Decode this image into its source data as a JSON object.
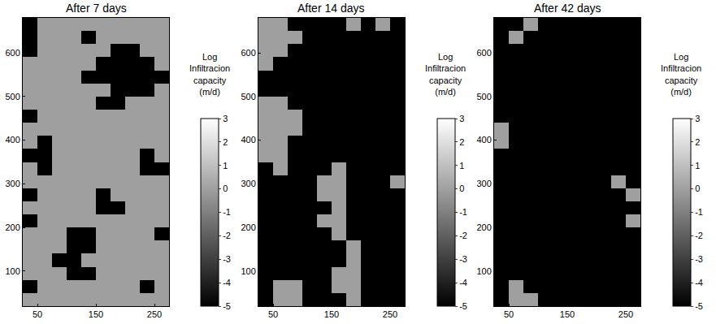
{
  "chart_data": [
    {
      "type": "heatmap",
      "title": "After 7 days",
      "x": [
        37.5,
        62.5,
        87.5,
        112.5,
        137.5,
        162.5,
        187.5,
        212.5,
        237.5,
        262.5
      ],
      "y": [
        665,
        635,
        605,
        575,
        545,
        515,
        485,
        455,
        425,
        395,
        365,
        335,
        305,
        275,
        245,
        215,
        185,
        155,
        125,
        95,
        65,
        35
      ],
      "z": [
        [
          -5,
          0,
          0,
          0,
          0,
          0,
          0,
          0,
          0,
          0
        ],
        [
          -5,
          0,
          0,
          0,
          -5,
          0,
          0,
          0,
          0,
          0
        ],
        [
          -5,
          0,
          0,
          0,
          0,
          0,
          -5,
          -5,
          0,
          0
        ],
        [
          0,
          0,
          0,
          0,
          0,
          -5,
          -5,
          -5,
          -5,
          0
        ],
        [
          0,
          0,
          0,
          0,
          -5,
          -5,
          -5,
          -5,
          -5,
          -5
        ],
        [
          0,
          0,
          0,
          0,
          0,
          0,
          -5,
          -5,
          -5,
          0
        ],
        [
          0,
          0,
          0,
          0,
          0,
          -5,
          -5,
          0,
          0,
          0
        ],
        [
          -5,
          0,
          0,
          0,
          0,
          0,
          0,
          0,
          0,
          0
        ],
        [
          0,
          0,
          0,
          0,
          0,
          0,
          0,
          0,
          0,
          0
        ],
        [
          0,
          -5,
          0,
          0,
          0,
          0,
          0,
          0,
          0,
          0
        ],
        [
          -5,
          -5,
          0,
          0,
          0,
          0,
          0,
          0,
          -5,
          0
        ],
        [
          0,
          -5,
          0,
          0,
          0,
          0,
          0,
          0,
          -5,
          -5
        ],
        [
          0,
          0,
          0,
          0,
          0,
          0,
          0,
          0,
          0,
          0
        ],
        [
          -5,
          0,
          0,
          0,
          0,
          -5,
          0,
          0,
          0,
          0
        ],
        [
          0,
          0,
          0,
          0,
          0,
          -5,
          -5,
          0,
          0,
          0
        ],
        [
          -5,
          0,
          0,
          0,
          0,
          0,
          0,
          0,
          0,
          0
        ],
        [
          0,
          0,
          0,
          -5,
          -5,
          0,
          0,
          0,
          0,
          -5
        ],
        [
          0,
          0,
          0,
          -5,
          -5,
          0,
          0,
          0,
          0,
          0
        ],
        [
          0,
          0,
          -5,
          -5,
          0,
          0,
          0,
          0,
          0,
          0
        ],
        [
          0,
          0,
          0,
          -5,
          -5,
          0,
          0,
          0,
          0,
          0
        ],
        [
          -5,
          0,
          0,
          0,
          0,
          0,
          0,
          0,
          -5,
          0
        ],
        [
          0,
          0,
          0,
          0,
          0,
          0,
          0,
          0,
          0,
          0
        ]
      ],
      "xlim": [
        25,
        275
      ],
      "xticks": [
        50,
        150,
        250
      ],
      "ylim": [
        20,
        680
      ],
      "yticks": [
        100,
        200,
        300,
        400,
        500,
        600
      ],
      "colorbar": {
        "title": "Log Infiltracion capacity (m/d)",
        "range": [
          -5,
          3
        ],
        "ticks": [
          -5,
          -4,
          -3,
          -2,
          -1,
          0,
          1,
          2,
          3
        ]
      }
    },
    {
      "type": "heatmap",
      "title": "After 14 days",
      "x": [
        37.5,
        62.5,
        87.5,
        112.5,
        137.5,
        162.5,
        187.5,
        212.5,
        237.5,
        262.5
      ],
      "y": [
        665,
        635,
        605,
        575,
        545,
        515,
        485,
        455,
        425,
        395,
        365,
        335,
        305,
        275,
        245,
        215,
        185,
        155,
        125,
        95,
        65,
        35
      ],
      "z": [
        [
          0,
          0,
          -5,
          -5,
          -5,
          -5,
          0,
          -5,
          0,
          -5
        ],
        [
          0,
          0,
          0,
          -5,
          -5,
          -5,
          -5,
          -5,
          -5,
          -5
        ],
        [
          0,
          0,
          -5,
          -5,
          -5,
          -5,
          -5,
          -5,
          -5,
          -5
        ],
        [
          0,
          -5,
          -5,
          -5,
          -5,
          -5,
          -5,
          -5,
          -5,
          -5
        ],
        [
          -5,
          -5,
          -5,
          -5,
          -5,
          -5,
          -5,
          -5,
          -5,
          -5
        ],
        [
          -5,
          -5,
          -5,
          -5,
          -5,
          -5,
          -5,
          -5,
          -5,
          -5
        ],
        [
          0,
          0,
          -5,
          -5,
          -5,
          -5,
          -5,
          -5,
          -5,
          -5
        ],
        [
          0,
          0,
          0,
          -5,
          -5,
          -5,
          -5,
          -5,
          -5,
          -5
        ],
        [
          0,
          0,
          0,
          -5,
          -5,
          -5,
          -5,
          -5,
          -5,
          -5
        ],
        [
          0,
          0,
          -5,
          -5,
          -5,
          -5,
          -5,
          -5,
          -5,
          -5
        ],
        [
          0,
          0,
          -5,
          -5,
          -5,
          -5,
          -5,
          -5,
          -5,
          -5
        ],
        [
          -5,
          0,
          -5,
          -5,
          -5,
          0,
          -5,
          -5,
          -5,
          -5
        ],
        [
          -5,
          -5,
          -5,
          -5,
          0,
          0,
          -5,
          -5,
          -5,
          0
        ],
        [
          -5,
          -5,
          -5,
          -5,
          0,
          0,
          -5,
          -5,
          -5,
          -5
        ],
        [
          -5,
          -5,
          -5,
          -5,
          -5,
          0,
          -5,
          -5,
          -5,
          -5
        ],
        [
          -5,
          -5,
          -5,
          -5,
          0,
          0,
          -5,
          -5,
          -5,
          -5
        ],
        [
          -5,
          -5,
          -5,
          -5,
          -5,
          0,
          -5,
          -5,
          -5,
          -5
        ],
        [
          -5,
          -5,
          -5,
          -5,
          -5,
          -5,
          0,
          -5,
          -5,
          -5
        ],
        [
          -5,
          -5,
          -5,
          -5,
          -5,
          -5,
          0,
          -5,
          -5,
          -5
        ],
        [
          -5,
          -5,
          -5,
          -5,
          -5,
          0,
          0,
          -5,
          -5,
          -5
        ],
        [
          -5,
          0,
          0,
          -5,
          -5,
          0,
          0,
          -5,
          -5,
          -5
        ],
        [
          -5,
          0,
          0,
          -5,
          -5,
          -5,
          0,
          -5,
          -5,
          -5
        ]
      ],
      "xlim": [
        25,
        275
      ],
      "xticks": [
        50,
        150,
        250
      ],
      "ylim": [
        20,
        680
      ],
      "yticks": [
        100,
        200,
        300,
        400,
        500,
        600
      ],
      "colorbar": {
        "title": "Log Infiltracion capacity (m/d)",
        "range": [
          -5,
          3
        ],
        "ticks": [
          -5,
          -4,
          -3,
          -2,
          -1,
          0,
          1,
          2,
          3
        ]
      }
    },
    {
      "type": "heatmap",
      "title": "After 42 days",
      "x": [
        37.5,
        62.5,
        87.5,
        112.5,
        137.5,
        162.5,
        187.5,
        212.5,
        237.5,
        262.5
      ],
      "y": [
        665,
        635,
        605,
        575,
        545,
        515,
        485,
        455,
        425,
        395,
        365,
        335,
        305,
        275,
        245,
        215,
        185,
        155,
        125,
        95,
        65,
        35
      ],
      "z": [
        [
          -5,
          -5,
          0,
          -5,
          -5,
          -5,
          -5,
          -5,
          -5,
          -5
        ],
        [
          -5,
          0,
          -5,
          -5,
          -5,
          -5,
          -5,
          -5,
          -5,
          -5
        ],
        [
          -5,
          -5,
          -5,
          -5,
          -5,
          -5,
          -5,
          -5,
          -5,
          -5
        ],
        [
          -5,
          -5,
          -5,
          -5,
          -5,
          -5,
          -5,
          -5,
          -5,
          -5
        ],
        [
          -5,
          -5,
          -5,
          -5,
          -5,
          -5,
          -5,
          -5,
          -5,
          -5
        ],
        [
          -5,
          -5,
          -5,
          -5,
          -5,
          -5,
          -5,
          -5,
          -5,
          -5
        ],
        [
          -5,
          -5,
          -5,
          -5,
          -5,
          -5,
          -5,
          -5,
          -5,
          -5
        ],
        [
          -5,
          -5,
          -5,
          -5,
          -5,
          -5,
          -5,
          -5,
          -5,
          -5
        ],
        [
          0,
          -5,
          -5,
          -5,
          -5,
          -5,
          -5,
          -5,
          -5,
          -5
        ],
        [
          0,
          -5,
          -5,
          -5,
          -5,
          -5,
          -5,
          -5,
          -5,
          -5
        ],
        [
          -5,
          -5,
          -5,
          -5,
          -5,
          -5,
          -5,
          -5,
          -5,
          -5
        ],
        [
          -5,
          -5,
          -5,
          -5,
          -5,
          -5,
          -5,
          -5,
          -5,
          -5
        ],
        [
          -5,
          -5,
          -5,
          -5,
          -5,
          -5,
          -5,
          -5,
          0,
          -5
        ],
        [
          -5,
          -5,
          -5,
          -5,
          -5,
          -5,
          -5,
          -5,
          -5,
          0
        ],
        [
          -5,
          -5,
          -5,
          -5,
          -5,
          -5,
          -5,
          -5,
          -5,
          -5
        ],
        [
          -5,
          -5,
          -5,
          -5,
          -5,
          -5,
          -5,
          -5,
          -5,
          0
        ],
        [
          -5,
          -5,
          -5,
          -5,
          -5,
          -5,
          -5,
          -5,
          -5,
          -5
        ],
        [
          -5,
          -5,
          -5,
          -5,
          -5,
          -5,
          -5,
          -5,
          -5,
          -5
        ],
        [
          -5,
          -5,
          -5,
          -5,
          -5,
          -5,
          -5,
          -5,
          -5,
          -5
        ],
        [
          -5,
          -5,
          -5,
          -5,
          -5,
          -5,
          -5,
          -5,
          -5,
          -5
        ],
        [
          -5,
          0,
          -5,
          -5,
          -5,
          -5,
          -5,
          -5,
          -5,
          -5
        ],
        [
          -5,
          0,
          0,
          -5,
          -5,
          -5,
          -5,
          -5,
          -5,
          -5
        ]
      ],
      "xlim": [
        25,
        275
      ],
      "xticks": [
        50,
        150,
        250
      ],
      "ylim": [
        20,
        680
      ],
      "yticks": [
        100,
        200,
        300,
        400,
        500,
        600
      ],
      "colorbar": {
        "title": "Log Infiltracion capacity (m/d)",
        "range": [
          -5,
          3
        ],
        "ticks": [
          -5,
          -4,
          -3,
          -2,
          -1,
          0,
          1,
          2,
          3
        ]
      }
    }
  ]
}
